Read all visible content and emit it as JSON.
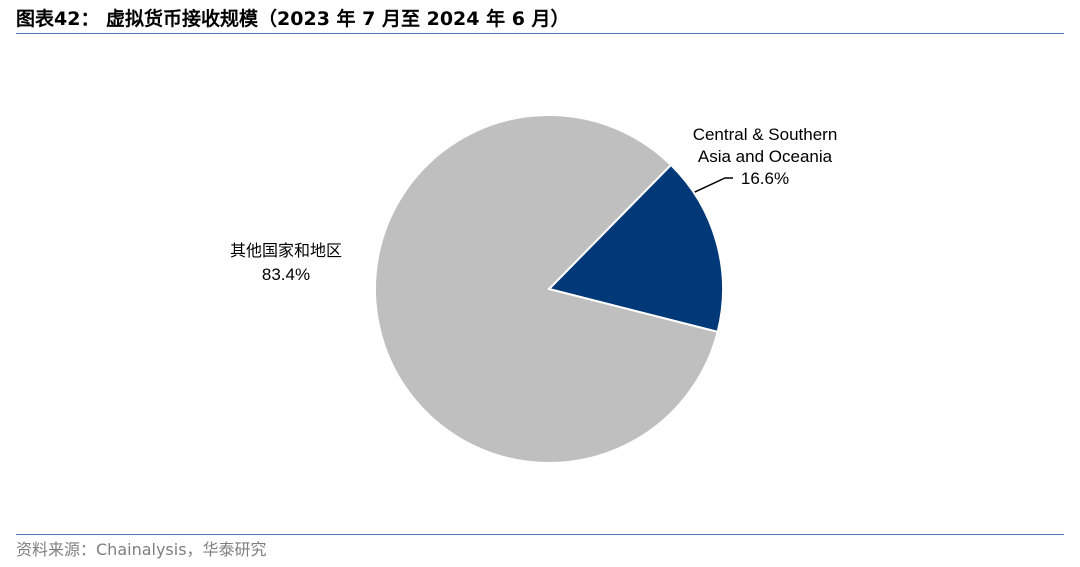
{
  "header": {
    "title": "图表42：  虚拟货币接收规模（2023 年 7 月至 2024 年 6 月）"
  },
  "chart_data": {
    "type": "pie",
    "title": "",
    "start_angle_deg": 0,
    "direction": "clockwise",
    "slices": [
      {
        "name": "Central & Southern Asia and Oceania",
        "name_lines": [
          "Central & Southern",
          "Asia and Oceania"
        ],
        "value": 16.6,
        "value_label": "16.6%",
        "color": "#003878"
      },
      {
        "name": "其他国家和地区",
        "name_lines": [
          "其他国家和地区"
        ],
        "value": 83.4,
        "value_label": "83.4%",
        "color": "#bfbfbf"
      }
    ],
    "legend": "none"
  },
  "footer": {
    "source": "资料来源：Chainalysis，华泰研究"
  },
  "colors": {
    "rule": "#4f81bd",
    "source_text": "#7f7f7f"
  }
}
